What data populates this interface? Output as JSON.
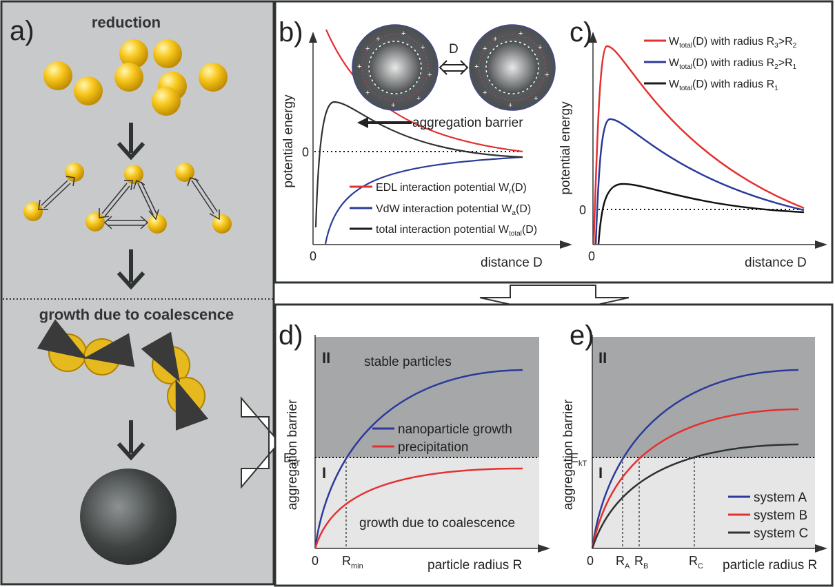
{
  "panel_a": {
    "label": "a)",
    "reduction_title": "reduction",
    "coalescence_title": "growth due to coalescence"
  },
  "panel_b": {
    "label": "b)",
    "ylabel": "potential energy",
    "xlabel": "distance D",
    "zero_y": "0",
    "zero_x": "0",
    "distance_label": "D",
    "annotation": "aggregation barrier",
    "legend": [
      {
        "color": "#e53030",
        "text": "EDL interaction potential W",
        "sub": "r",
        "tail": "(D)"
      },
      {
        "color": "#2b3a9a",
        "text": "VdW interaction potential W",
        "sub": "a",
        "tail": "(D)"
      },
      {
        "color": "#1a1a1a",
        "text": "total interaction potential W",
        "sub": "total",
        "tail": "(D)"
      }
    ]
  },
  "panel_c": {
    "label": "c)",
    "ylabel": "potential energy",
    "xlabel": "distance D",
    "zero_y": "0",
    "zero_x": "0",
    "legend": [
      {
        "color": "#e53030",
        "pre": "W",
        "sub1": "total",
        "mid": "(D) with radius R",
        "sub2": "3",
        "mid2": ">R",
        "sub3": "2"
      },
      {
        "color": "#2b3a9a",
        "pre": "W",
        "sub1": "total",
        "mid": "(D) with radius R",
        "sub2": "2",
        "mid2": ">R",
        "sub3": "1"
      },
      {
        "color": "#1a1a1a",
        "pre": "W",
        "sub1": "total",
        "mid": "(D) with radius R",
        "sub2": "1",
        "mid2": "",
        "sub3": ""
      }
    ]
  },
  "panel_d": {
    "label": "d)",
    "ylabel": "aggregation barrier",
    "xlabel": "particle radius R",
    "zero_x": "0",
    "region_II": "II",
    "region_I": "I",
    "ekt": "E",
    "ekt_sub": "kT",
    "stable_text": "stable particles",
    "coalescence_text": "growth due to coalescence",
    "rmin": "R",
    "rmin_sub": "min",
    "legend": [
      {
        "color": "#2b3a9a",
        "text": "nanoparticle growth"
      },
      {
        "color": "#e53030",
        "text": "precipitation"
      }
    ]
  },
  "panel_e": {
    "label": "e)",
    "ylabel": "aggregation barrier",
    "xlabel": "particle radius R",
    "zero_x": "0",
    "region_II": "II",
    "region_I": "I",
    "ekt": "E",
    "ekt_sub": "kT",
    "ra": "R",
    "ra_sub": "A",
    "rb": "R",
    "rb_sub": "B",
    "rc": "R",
    "rc_sub": "C",
    "legend": [
      {
        "color": "#2b3a9a",
        "text": "system A"
      },
      {
        "color": "#e53030",
        "text": "system B"
      },
      {
        "color": "#2d3331",
        "text": "system C"
      }
    ]
  },
  "colors": {
    "gold": "#f5c518",
    "panel_gray": "#c8c9cb",
    "region_II": "#a6a7a9",
    "region_I": "#e6e6e6",
    "red": "#e53030",
    "blue": "#2b3a9a",
    "black": "#1a1a1a"
  }
}
